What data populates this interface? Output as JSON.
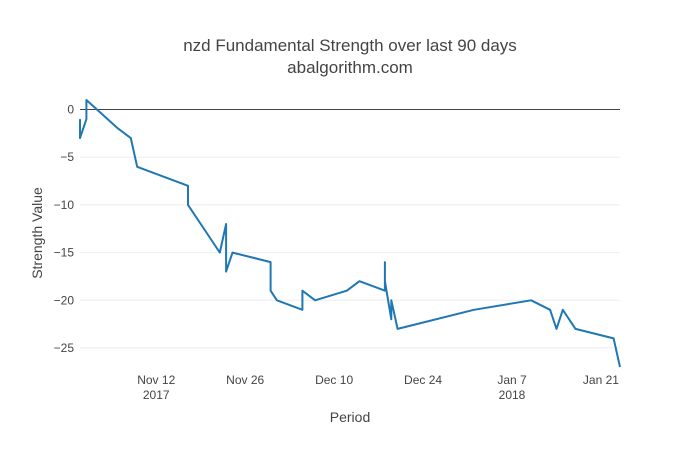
{
  "chart_data": {
    "type": "line",
    "title": "nzd Fundamental Strength over last 90 days",
    "subtitle": "abalgorithm.com",
    "xlabel": "Period",
    "ylabel": "Strength Value",
    "ylim": [
      -27,
      1
    ],
    "xlim": [
      "2017-10-31",
      "2018-01-24"
    ],
    "grid": "horizontal",
    "zeroline": true,
    "colors": {
      "line": "#1f77b4",
      "grid": "#eeeeee",
      "zeroline": "#444444"
    },
    "x_ticks": [
      {
        "date": "2017-11-12",
        "label": "Nov 12",
        "sublabel": "2017"
      },
      {
        "date": "2017-11-26",
        "label": "Nov 26",
        "sublabel": ""
      },
      {
        "date": "2017-12-10",
        "label": "Dec 10",
        "sublabel": ""
      },
      {
        "date": "2017-12-24",
        "label": "Dec 24",
        "sublabel": ""
      },
      {
        "date": "2018-01-07",
        "label": "Jan 7",
        "sublabel": "2018"
      },
      {
        "date": "2018-01-21",
        "label": "Jan 21",
        "sublabel": ""
      }
    ],
    "y_ticks": [
      {
        "value": 0,
        "label": "0"
      },
      {
        "value": -5,
        "label": "−5"
      },
      {
        "value": -10,
        "label": "−10"
      },
      {
        "value": -15,
        "label": "−15"
      },
      {
        "value": -20,
        "label": "−20"
      },
      {
        "value": -25,
        "label": "−25"
      }
    ],
    "series": [
      {
        "x": [
          "2017-10-31",
          "2017-10-31",
          "2017-11-01",
          "2017-11-01",
          "2017-11-06",
          "2017-11-06",
          "2017-11-08",
          "2017-11-09",
          "2017-11-17",
          "2017-11-17",
          "2017-11-20",
          "2017-11-21",
          "2017-11-22",
          "2017-11-23",
          "2017-11-23",
          "2017-11-24",
          "2017-11-30",
          "2017-11-30",
          "2017-12-01",
          "2017-12-05",
          "2017-12-05",
          "2017-12-07",
          "2017-12-12",
          "2017-12-14",
          "2017-12-18",
          "2017-12-18",
          "2017-12-18",
          "2017-12-19",
          "2017-12-19",
          "2017-12-20",
          "2018-01-01",
          "2018-01-10",
          "2018-01-13",
          "2018-01-14",
          "2018-01-15",
          "2018-01-17",
          "2018-01-23",
          "2018-01-24"
        ],
        "y": [
          -1,
          -3,
          -1,
          1,
          -2,
          -2,
          -3,
          -6,
          -8,
          -10,
          -13,
          -14,
          -15,
          -12,
          -17,
          -15,
          -16,
          -19,
          -20,
          -21,
          -19,
          -20,
          -19,
          -18,
          -19,
          -16,
          -18,
          -22,
          -20,
          -23,
          -21,
          -20,
          -21,
          -23,
          -21,
          -23,
          -24,
          -27
        ]
      }
    ]
  }
}
